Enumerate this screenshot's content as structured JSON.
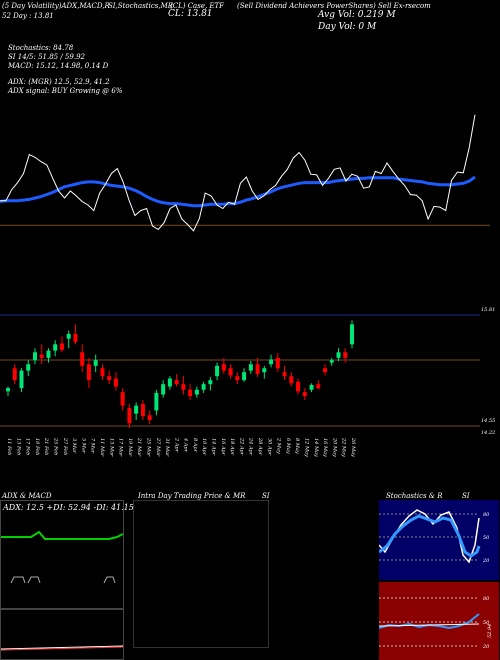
{
  "header": {
    "line1_left": "(5 Day Volatility)ADX,MACD,R",
    "line1_mid": "SI,Stochastics,MR",
    "line1_ticker": "(CL) Case, ETF",
    "line1_right": "(Sell Dividend Achievers PowerShares) Sell Ex-rsecom",
    "line2_left": "52 Day : 13.81",
    "price_big": "CL: 13.81",
    "avg_vol": "Avg Vol: 0.219 M",
    "day_vol": "Day Vol: 0   M",
    "stoch": "Stochastics: 84.78",
    "rsi": "SI 14/5: 51.85 / 59.92",
    "macd": "MACD: 15.12,  14.98, 0.14  D",
    "adx": "ADX:                          (MGR) 12.5, 52.9, 41.2",
    "adx_signal": "ADX  signal:                   BUY Growing @ 6%"
  },
  "price_labels": {
    "top": "15.81",
    "low1": "14.55",
    "low2": "14.22"
  },
  "x_dates": [
    "11 Feb",
    "13 Feb",
    "17 Feb",
    "19 Feb",
    "21 Feb",
    "25 Feb",
    "27 Feb",
    "3 Mar",
    "5 Mar",
    "7 Mar",
    "11 Mar",
    "13 Mar",
    "17 Mar",
    "19 Mar",
    "21 Mar",
    "25 Mar",
    "27 Mar",
    "31 Mar",
    "2 Apr",
    "4 Apr",
    "8 Apr",
    "10 Apr",
    "14 Apr",
    "16 Apr",
    "18 Apr",
    "22 Apr",
    "24 Apr",
    "28 Apr",
    "30 Apr",
    "2 May",
    "6 May",
    "8 May",
    "12 May",
    "14 May",
    "16 May",
    "20 May",
    "22 May",
    "26 May"
  ],
  "panels": {
    "adx_title": "ADX  & MACD",
    "adx_values": "ADX: 12.5  +DI: 52.94  -DI: 41.15",
    "intraday_title": "Intra  Day Trading Price  & MR",
    "intraday_si": "SI",
    "stoch_title": "Stochastics & R",
    "stoch_si": "SI",
    "stoch_levels": [
      "80",
      "50",
      "20"
    ],
    "rsi_levels": [
      "80",
      "50",
      "20"
    ],
    "rsi_value": "52.94"
  },
  "colors": {
    "up": "#00e676",
    "down": "#ff0000",
    "ma": "#1e5bff",
    "stoch_bg": "#000066",
    "rsi_bg": "#8b0000",
    "grid_brown": "#7a4a1a"
  },
  "chart_data": {
    "type": "candlestick",
    "close_line": [
      13.96,
      13.96,
      14.12,
      14.22,
      14.35,
      14.62,
      14.58,
      14.52,
      14.47,
      14.28,
      14.1,
      14.0,
      14.1,
      14.03,
      13.95,
      13.9,
      13.82,
      14.07,
      14.2,
      14.35,
      14.42,
      14.23,
      13.97,
      13.75,
      13.82,
      13.85,
      13.6,
      13.55,
      13.65,
      13.85,
      13.9,
      13.7,
      13.62,
      13.53,
      13.71,
      14.07,
      14.03,
      13.9,
      13.85,
      13.94,
      13.91,
      14.21,
      14.3,
      14.1,
      13.98,
      14.03,
      14.12,
      14.18,
      14.31,
      14.41,
      14.57,
      14.65,
      14.54,
      14.34,
      14.33,
      14.18,
      14.28,
      14.41,
      14.43,
      14.24,
      14.34,
      14.31,
      14.14,
      14.16,
      14.38,
      14.35,
      14.5,
      14.38,
      14.27,
      14.18,
      14.05,
      14.04,
      13.96,
      13.7,
      13.88,
      13.87,
      13.82,
      14.25,
      14.37,
      14.36,
      14.71,
      15.19
    ],
    "ma_line": [
      13.95,
      13.96,
      13.96,
      13.96,
      13.97,
      13.98,
      14.0,
      14.02,
      14.05,
      14.08,
      14.12,
      14.16,
      14.18,
      14.2,
      14.22,
      14.23,
      14.23,
      14.22,
      14.2,
      14.18,
      14.17,
      14.16,
      14.14,
      14.11,
      14.07,
      14.02,
      13.98,
      13.95,
      13.93,
      13.92,
      13.92,
      13.91,
      13.9,
      13.89,
      13.89,
      13.9,
      13.91,
      13.91,
      13.91,
      13.92,
      13.92,
      13.94,
      13.97,
      13.99,
      14.02,
      14.05,
      14.08,
      14.12,
      14.15,
      14.17,
      14.19,
      14.21,
      14.22,
      14.22,
      14.22,
      14.22,
      14.22,
      14.24,
      14.25,
      14.26,
      14.27,
      14.28,
      14.28,
      14.29,
      14.29,
      14.29,
      14.29,
      14.29,
      14.27,
      14.26,
      14.25,
      14.24,
      14.23,
      14.21,
      14.2,
      14.19,
      14.19,
      14.19,
      14.2,
      14.21,
      14.24,
      14.3
    ],
    "reference_line": 13.61,
    "candles": [
      {
        "o": 13.96,
        "h": 14.02,
        "l": 13.9,
        "c": 14.0
      },
      {
        "o": 14.25,
        "h": 14.3,
        "l": 14.05,
        "c": 14.1
      },
      {
        "o": 14.0,
        "h": 14.25,
        "l": 13.95,
        "c": 14.22
      },
      {
        "o": 14.22,
        "h": 14.35,
        "l": 14.15,
        "c": 14.3
      },
      {
        "o": 14.35,
        "h": 14.5,
        "l": 14.3,
        "c": 14.45
      },
      {
        "o": 14.42,
        "h": 14.55,
        "l": 14.3,
        "c": 14.38
      },
      {
        "o": 14.38,
        "h": 14.5,
        "l": 14.32,
        "c": 14.47
      },
      {
        "o": 14.47,
        "h": 14.6,
        "l": 14.4,
        "c": 14.55
      },
      {
        "o": 14.56,
        "h": 14.65,
        "l": 14.45,
        "c": 14.48
      },
      {
        "o": 14.62,
        "h": 14.72,
        "l": 14.5,
        "c": 14.68
      },
      {
        "o": 14.68,
        "h": 14.8,
        "l": 14.55,
        "c": 14.58
      },
      {
        "o": 14.45,
        "h": 14.55,
        "l": 14.2,
        "c": 14.28
      },
      {
        "o": 14.3,
        "h": 14.38,
        "l": 14.0,
        "c": 14.1
      },
      {
        "o": 14.28,
        "h": 14.42,
        "l": 14.2,
        "c": 14.35
      },
      {
        "o": 14.25,
        "h": 14.3,
        "l": 14.1,
        "c": 14.15
      },
      {
        "o": 14.15,
        "h": 14.22,
        "l": 14.05,
        "c": 14.1
      },
      {
        "o": 14.12,
        "h": 14.2,
        "l": 13.97,
        "c": 14.02
      },
      {
        "o": 13.95,
        "h": 14.0,
        "l": 13.72,
        "c": 13.78
      },
      {
        "o": 13.75,
        "h": 13.8,
        "l": 13.5,
        "c": 13.56
      },
      {
        "o": 13.68,
        "h": 13.82,
        "l": 13.6,
        "c": 13.78
      },
      {
        "o": 13.8,
        "h": 13.85,
        "l": 13.6,
        "c": 13.65
      },
      {
        "o": 13.66,
        "h": 13.72,
        "l": 13.55,
        "c": 13.6
      },
      {
        "o": 13.72,
        "h": 13.98,
        "l": 13.66,
        "c": 13.94
      },
      {
        "o": 13.92,
        "h": 14.1,
        "l": 13.88,
        "c": 14.05
      },
      {
        "o": 14.02,
        "h": 14.15,
        "l": 13.98,
        "c": 14.12
      },
      {
        "o": 14.1,
        "h": 14.18,
        "l": 14.02,
        "c": 14.05
      },
      {
        "o": 14.05,
        "h": 14.15,
        "l": 13.92,
        "c": 13.98
      },
      {
        "o": 13.98,
        "h": 14.05,
        "l": 13.85,
        "c": 13.9
      },
      {
        "o": 13.92,
        "h": 14.02,
        "l": 13.88,
        "c": 13.98
      },
      {
        "o": 13.98,
        "h": 14.08,
        "l": 13.94,
        "c": 14.05
      },
      {
        "o": 14.05,
        "h": 14.14,
        "l": 13.97,
        "c": 14.1
      },
      {
        "o": 14.15,
        "h": 14.32,
        "l": 14.1,
        "c": 14.28
      },
      {
        "o": 14.3,
        "h": 14.38,
        "l": 14.18,
        "c": 14.22
      },
      {
        "o": 14.25,
        "h": 14.3,
        "l": 14.12,
        "c": 14.16
      },
      {
        "o": 14.15,
        "h": 14.2,
        "l": 14.05,
        "c": 14.1
      },
      {
        "o": 14.1,
        "h": 14.25,
        "l": 14.08,
        "c": 14.2
      },
      {
        "o": 14.22,
        "h": 14.34,
        "l": 14.18,
        "c": 14.3
      },
      {
        "o": 14.3,
        "h": 14.38,
        "l": 14.14,
        "c": 14.18
      },
      {
        "o": 14.2,
        "h": 14.28,
        "l": 14.12,
        "c": 14.25
      },
      {
        "o": 14.3,
        "h": 14.42,
        "l": 14.26,
        "c": 14.36
      },
      {
        "o": 14.38,
        "h": 14.44,
        "l": 14.2,
        "c": 14.25
      },
      {
        "o": 14.2,
        "h": 14.28,
        "l": 14.1,
        "c": 14.15
      },
      {
        "o": 14.15,
        "h": 14.2,
        "l": 14.02,
        "c": 14.06
      },
      {
        "o": 14.08,
        "h": 14.12,
        "l": 13.92,
        "c": 13.96
      },
      {
        "o": 13.95,
        "h": 14.0,
        "l": 13.85,
        "c": 13.9
      },
      {
        "o": 13.98,
        "h": 14.06,
        "l": 13.95,
        "c": 14.04
      },
      {
        "o": 14.05,
        "h": 14.1,
        "l": 13.98,
        "c": 14.0
      },
      {
        "o": 14.25,
        "h": 14.3,
        "l": 14.16,
        "c": 14.2
      },
      {
        "o": 14.32,
        "h": 14.38,
        "l": 14.28,
        "c": 14.35
      },
      {
        "o": 14.38,
        "h": 14.5,
        "l": 14.34,
        "c": 14.45
      },
      {
        "o": 14.45,
        "h": 14.5,
        "l": 14.32,
        "c": 14.38
      },
      {
        "o": 14.55,
        "h": 14.85,
        "l": 14.5,
        "c": 14.8
      }
    ],
    "price_range": [
      13.45,
      14.98
    ],
    "indicator_lines": [
      15.81,
      14.55,
      14.22
    ],
    "adx": 12.5,
    "plus_di": 52.94,
    "minus_di": 41.15,
    "stochastics": 84.78,
    "rsi_14_5": [
      51.85,
      59.92
    ],
    "macd": [
      15.12,
      14.98,
      0.14
    ]
  }
}
